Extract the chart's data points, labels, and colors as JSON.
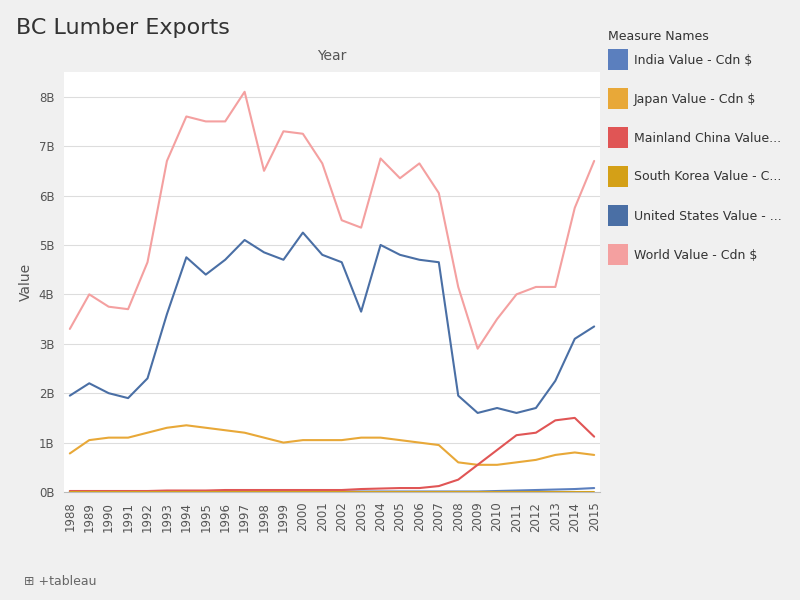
{
  "title": "BC Lumber Exports",
  "year_label": "Year",
  "ylabel": "Value",
  "years": [
    1988,
    1989,
    1990,
    1991,
    1992,
    1993,
    1994,
    1995,
    1996,
    1997,
    1998,
    1999,
    2000,
    2001,
    2002,
    2003,
    2004,
    2005,
    2006,
    2007,
    2008,
    2009,
    2010,
    2011,
    2012,
    2013,
    2014,
    2015
  ],
  "series": [
    {
      "name": "India Value - Cdn $",
      "color": "#5b7fbe",
      "values": [
        0.01,
        0.01,
        0.01,
        0.01,
        0.01,
        0.01,
        0.01,
        0.01,
        0.01,
        0.01,
        0.01,
        0.01,
        0.01,
        0.01,
        0.01,
        0.01,
        0.01,
        0.01,
        0.01,
        0.01,
        0.01,
        0.01,
        0.02,
        0.03,
        0.04,
        0.05,
        0.06,
        0.08
      ]
    },
    {
      "name": "Japan Value - Cdn $",
      "color": "#e8a838",
      "values": [
        0.78,
        1.05,
        1.1,
        1.1,
        1.2,
        1.3,
        1.35,
        1.3,
        1.25,
        1.2,
        1.1,
        1.0,
        1.05,
        1.05,
        1.05,
        1.1,
        1.1,
        1.05,
        1.0,
        0.95,
        0.6,
        0.55,
        0.55,
        0.6,
        0.65,
        0.75,
        0.8,
        0.75
      ]
    },
    {
      "name": "Mainland China Value...",
      "color": "#e05555",
      "values": [
        0.02,
        0.02,
        0.02,
        0.02,
        0.02,
        0.03,
        0.03,
        0.03,
        0.04,
        0.04,
        0.04,
        0.04,
        0.04,
        0.04,
        0.04,
        0.06,
        0.07,
        0.08,
        0.08,
        0.12,
        0.25,
        0.55,
        0.85,
        1.15,
        1.2,
        1.45,
        1.5,
        1.12
      ]
    },
    {
      "name": "South Korea Value - C...",
      "color": "#d4a017",
      "values": [
        0.0,
        0.0,
        0.0,
        0.0,
        0.0,
        0.0,
        0.0,
        0.0,
        0.0,
        0.0,
        0.0,
        0.0,
        0.0,
        0.0,
        0.0,
        0.0,
        0.0,
        0.0,
        0.0,
        0.0,
        0.0,
        0.0,
        0.0,
        0.0,
        0.0,
        0.0,
        0.0,
        0.0
      ]
    },
    {
      "name": "United States Value - ...",
      "color": "#4a6fa5",
      "values": [
        1.95,
        2.2,
        2.0,
        1.9,
        2.3,
        3.6,
        4.75,
        4.4,
        4.7,
        5.1,
        4.85,
        4.7,
        5.25,
        4.8,
        4.65,
        3.65,
        5.0,
        4.8,
        4.7,
        4.65,
        1.95,
        1.6,
        1.7,
        1.6,
        1.7,
        2.25,
        3.1,
        3.35
      ]
    },
    {
      "name": "World Value - Cdn $",
      "color": "#f4a0a0",
      "values": [
        3.3,
        4.0,
        3.75,
        3.7,
        4.65,
        6.7,
        7.6,
        7.5,
        7.5,
        8.1,
        6.5,
        7.3,
        7.25,
        6.65,
        5.5,
        5.35,
        6.75,
        6.35,
        6.65,
        6.05,
        4.15,
        2.9,
        3.5,
        4.0,
        4.15,
        4.15,
        5.75,
        6.7
      ]
    }
  ],
  "ytick_labels": [
    "0B",
    "1B",
    "2B",
    "3B",
    "4B",
    "5B",
    "6B",
    "7B",
    "8B"
  ],
  "legend_title": "Measure Names",
  "fig_bg_color": "#f0f0f0",
  "plot_bg_color": "#ffffff",
  "grid_color": "#dddddd",
  "title_fontsize": 16,
  "ylabel_fontsize": 10,
  "tick_fontsize": 8.5,
  "legend_fontsize": 9,
  "tableau_text": "⊞ +tableau"
}
